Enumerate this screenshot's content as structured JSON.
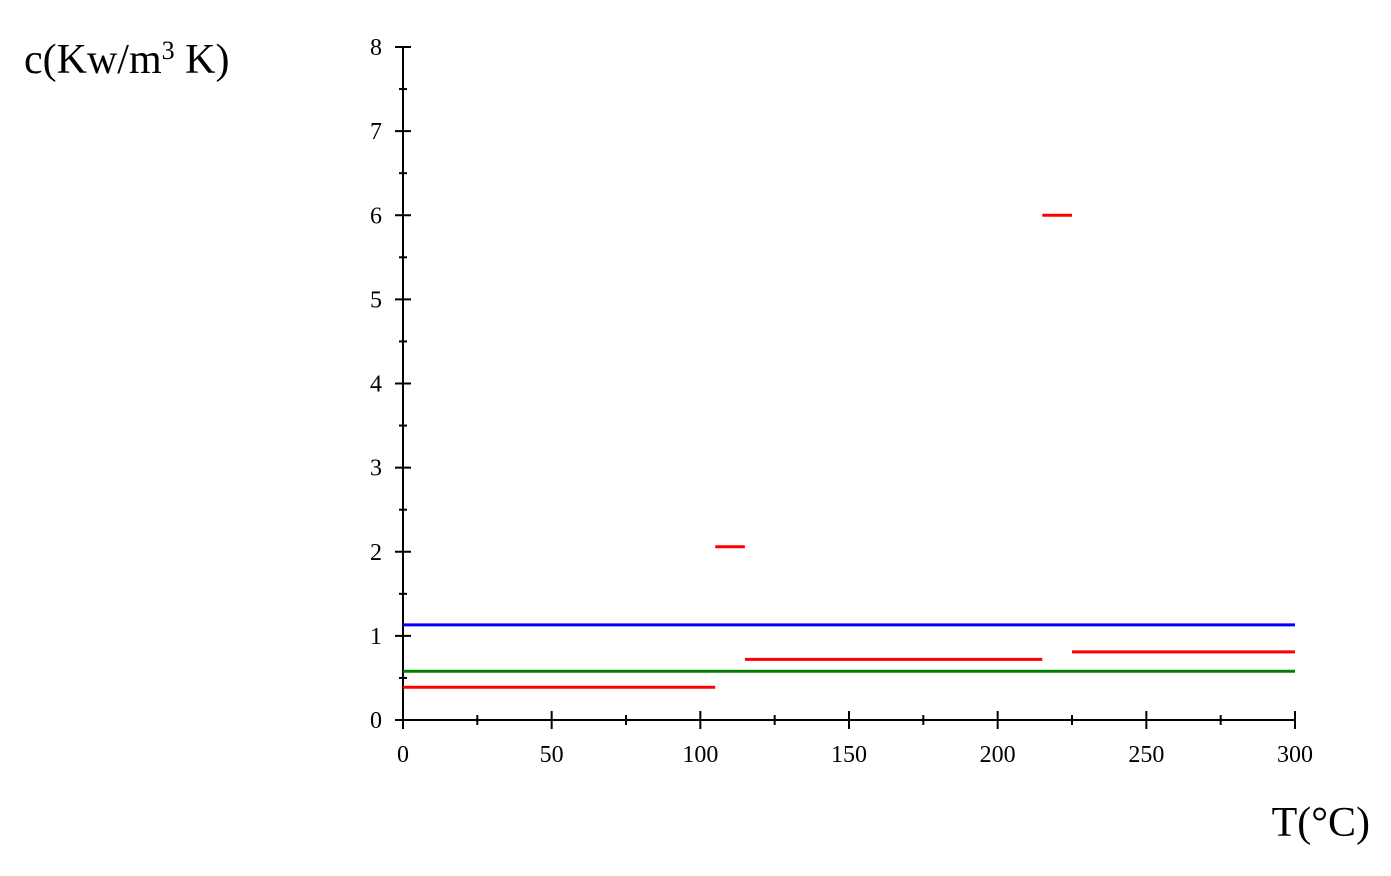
{
  "chart_data": {
    "type": "line",
    "title": "",
    "ylabel_parts": [
      "c(Kw/m",
      "3",
      " K)"
    ],
    "xlabel": "T(°C)",
    "xlim": [
      0,
      300
    ],
    "ylim": [
      0,
      8
    ],
    "x_major_ticks": [
      0,
      50,
      100,
      150,
      200,
      250,
      300
    ],
    "x_minor_step": 25,
    "y_major_ticks": [
      0,
      1,
      2,
      3,
      4,
      5,
      6,
      7,
      8
    ],
    "y_minor_step": 0.5,
    "grid": false,
    "legend": "none",
    "series": [
      {
        "color": "#0000ff",
        "segments": [
          {
            "x": [
              0,
              300
            ],
            "y": [
              1.13,
              1.13
            ]
          }
        ]
      },
      {
        "color": "#008000",
        "segments": [
          {
            "x": [
              0,
              300
            ],
            "y": [
              0.58,
              0.58
            ]
          }
        ]
      },
      {
        "color": "#ff0000",
        "segments": [
          {
            "x": [
              0,
              105
            ],
            "y": [
              0.39,
              0.39
            ]
          },
          {
            "x": [
              105,
              115
            ],
            "y": [
              2.06,
              2.06
            ]
          },
          {
            "x": [
              115,
              215
            ],
            "y": [
              0.72,
              0.72
            ]
          },
          {
            "x": [
              215,
              225
            ],
            "y": [
              6.0,
              6.0
            ]
          },
          {
            "x": [
              225,
              300
            ],
            "y": [
              0.81,
              0.81
            ]
          }
        ]
      }
    ]
  }
}
